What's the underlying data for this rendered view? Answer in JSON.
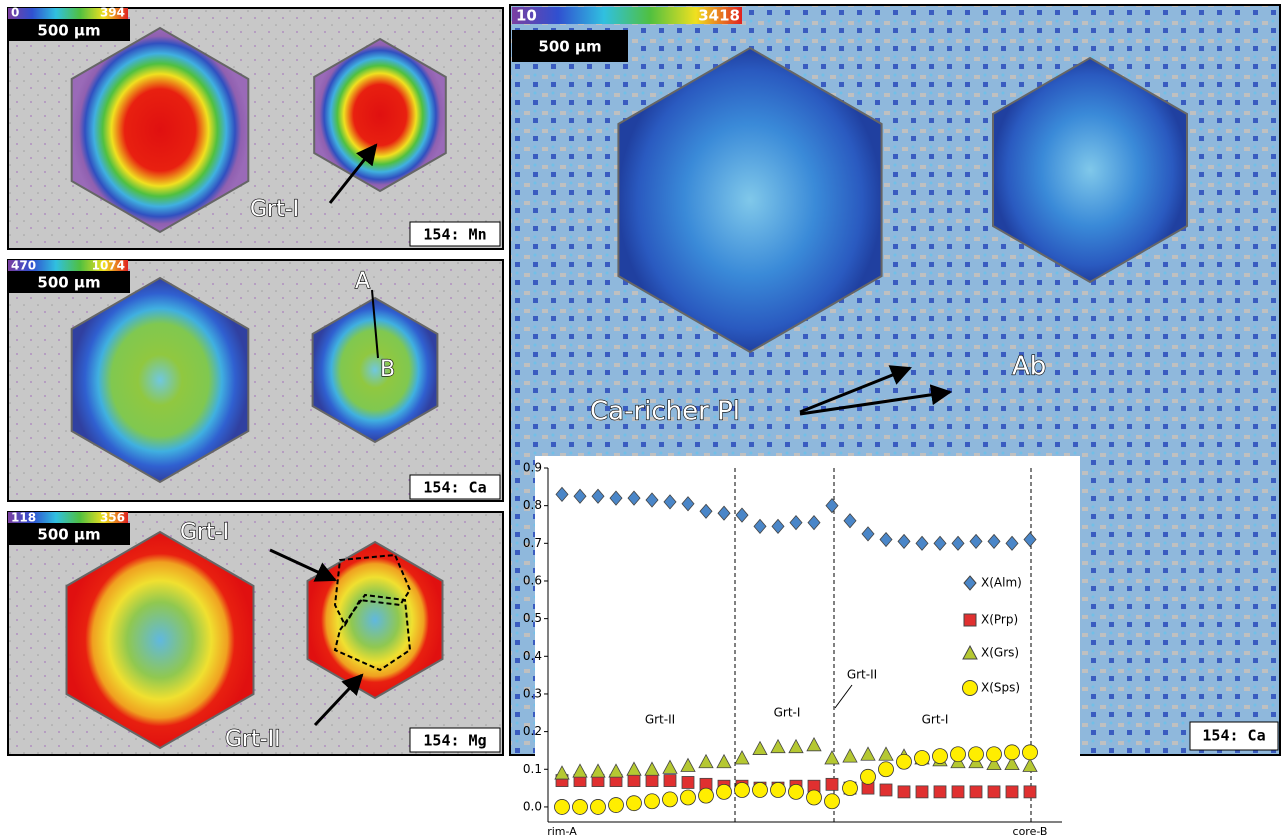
{
  "maps": [
    {
      "scale_min": 0,
      "scale_max": 394,
      "scale_bar": "500 μm",
      "label": "154: Mn",
      "annotations": [
        "Grt-I"
      ]
    },
    {
      "scale_min": 470,
      "scale_max": 1074,
      "scale_bar": "500 μm",
      "label": "154: Ca",
      "annotations": [
        "A",
        "B"
      ]
    },
    {
      "scale_min": 118,
      "scale_max": 356,
      "scale_bar": "500 μm",
      "label": "154: Mg",
      "annotations": [
        "Grt-I",
        "Grt-II"
      ]
    },
    {
      "scale_min": 10,
      "scale_max": 3418,
      "scale_bar": "500 μm",
      "label": "154: Ca",
      "annotations": [
        "Ca-richer Pl",
        "Ab"
      ]
    }
  ],
  "chart_data": {
    "type": "scatter",
    "categories": [
      "rim-A",
      null,
      null,
      null,
      null,
      null,
      null,
      null,
      null,
      null,
      null,
      null,
      null,
      null,
      null,
      null,
      null,
      null,
      null,
      null,
      null,
      null,
      null,
      null,
      null,
      null,
      "core-B"
    ],
    "annotations": [
      "Grt-II",
      "Grt-I",
      "Grt-II",
      "Grt-I"
    ],
    "ylim": [
      -0.04,
      0.9
    ],
    "yticks": [
      {
        "value": 0,
        "label": "0.0"
      },
      0.1,
      0.2,
      0.3,
      0.4,
      0.5,
      0.6,
      0.7,
      0.8,
      0.9
    ],
    "grid": false,
    "legend": "right",
    "series": [
      {
        "name": "X(Alm)",
        "color": "#4a86c8",
        "marker": "diamond",
        "values": [
          0.83,
          0.825,
          0.825,
          0.82,
          0.82,
          0.815,
          0.81,
          0.805,
          0.785,
          0.78,
          0.775,
          0.745,
          0.745,
          0.755,
          0.755,
          0.8,
          0.76,
          0.725,
          0.71,
          0.705,
          0.7,
          0.7,
          0.7,
          0.705,
          0.705,
          0.7,
          0.71
        ]
      },
      {
        "name": "X(Prp)",
        "color": "#e03030",
        "marker": "square",
        "values": [
          0.07,
          0.07,
          0.07,
          0.07,
          0.07,
          0.07,
          0.07,
          0.065,
          0.06,
          0.055,
          0.055,
          0.05,
          0.05,
          0.055,
          0.055,
          0.06,
          0.05,
          0.05,
          0.045,
          0.04,
          0.04,
          0.04,
          0.04,
          0.04,
          0.04,
          0.04,
          0.04
        ]
      },
      {
        "name": "X(Grs)",
        "color": "#b5c832",
        "marker": "triangle",
        "values": [
          0.09,
          0.095,
          0.095,
          0.095,
          0.1,
          0.1,
          0.105,
          0.11,
          0.12,
          0.12,
          0.13,
          0.155,
          0.16,
          0.16,
          0.165,
          0.13,
          0.135,
          0.14,
          0.14,
          0.135,
          0.13,
          0.125,
          0.12,
          0.12,
          0.115,
          0.115,
          0.11
        ]
      },
      {
        "name": "X(Sps)",
        "color": "#ffee00",
        "marker": "circle",
        "values": [
          0,
          0,
          0,
          0.005,
          0.01,
          0.015,
          0.02,
          0.025,
          0.03,
          0.04,
          0.045,
          0.045,
          0.045,
          0.04,
          0.025,
          0.015,
          0.05,
          0.08,
          0.1,
          0.12,
          0.13,
          0.135,
          0.14,
          0.14,
          0.14,
          0.145,
          0.145
        ]
      }
    ]
  }
}
